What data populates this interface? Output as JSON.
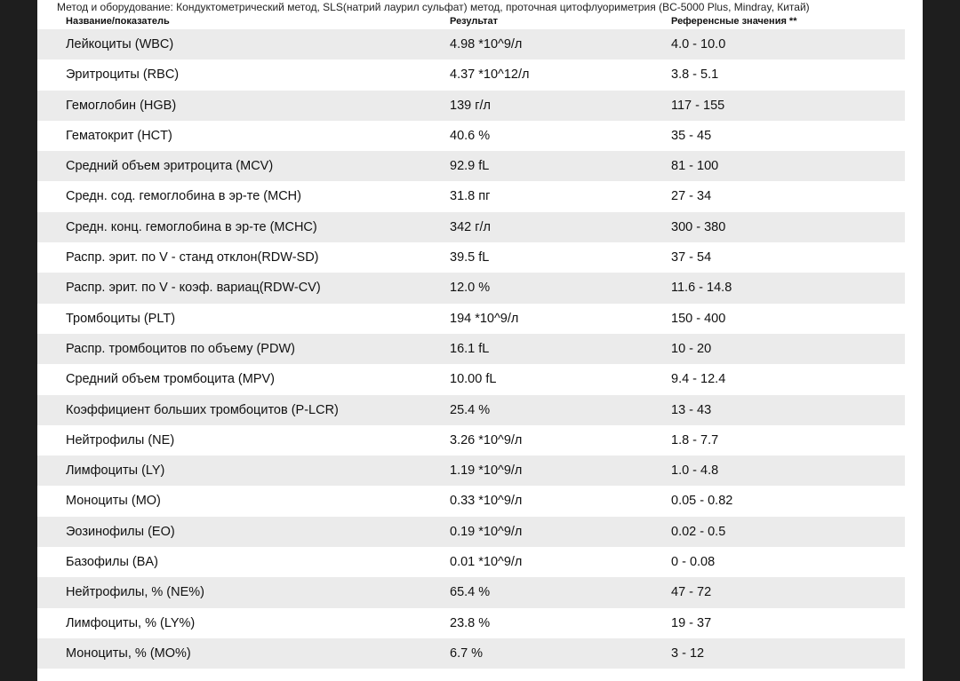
{
  "method_line": "Метод и оборудование: Кондуктометрический метод, SLS(натрий лаурил сульфат) метод, проточная цитофлуориметрия (BC-5000 Plus, Mindray, Китай)",
  "headers": {
    "name": "Название/показатель",
    "result": "Результат",
    "reference": "Референсные значения **"
  },
  "rows": [
    {
      "name": "Лейкоциты (WBC)",
      "result": "4.98 *10^9/л",
      "ref": "4.0 - 10.0"
    },
    {
      "name": "Эритроциты (RBC)",
      "result": "4.37 *10^12/л",
      "ref": "3.8 - 5.1"
    },
    {
      "name": "Гемоглобин (HGB)",
      "result": "139 г/л",
      "ref": "117 - 155"
    },
    {
      "name": "Гематокрит (HCT)",
      "result": "40.6 %",
      "ref": "35 - 45"
    },
    {
      "name": "Средний объем эритроцита (MCV)",
      "result": "92.9 fL",
      "ref": "81 - 100"
    },
    {
      "name": "Средн. сод. гемоглобина в эр-те (MCH)",
      "result": "31.8 пг",
      "ref": "27 - 34"
    },
    {
      "name": "Средн. конц. гемоглобина в эр-те (MCHC)",
      "result": "342 г/л",
      "ref": "300 - 380"
    },
    {
      "name": "Распр. эрит. по V - станд отклон(RDW-SD)",
      "result": "39.5 fL",
      "ref": "37 - 54"
    },
    {
      "name": "Распр. эрит. по V - коэф. вариац(RDW-CV)",
      "result": "12.0 %",
      "ref": "11.6 - 14.8"
    },
    {
      "name": "Тромбоциты (PLT)",
      "result": "194 *10^9/л",
      "ref": "150 - 400"
    },
    {
      "name": "Распр. тромбоцитов по объему (PDW)",
      "result": "16.1 fL",
      "ref": "10 - 20"
    },
    {
      "name": "Средний объем тромбоцита (MPV)",
      "result": "10.00 fL",
      "ref": "9.4 - 12.4"
    },
    {
      "name": "Коэффициент больших тромбоцитов (P-LCR)",
      "result": "25.4 %",
      "ref": "13 - 43"
    },
    {
      "name": "Нейтрофилы (NE)",
      "result": "3.26 *10^9/л",
      "ref": "1.8 - 7.7"
    },
    {
      "name": "Лимфоциты (LY)",
      "result": "1.19 *10^9/л",
      "ref": "1.0 - 4.8"
    },
    {
      "name": "Моноциты (MO)",
      "result": "0.33 *10^9/л",
      "ref": "0.05 - 0.82"
    },
    {
      "name": "Эозинофилы (EO)",
      "result": "0.19 *10^9/л",
      "ref": "0.02 - 0.5"
    },
    {
      "name": "Базофилы (BA)",
      "result": "0.01 *10^9/л",
      "ref": "0 - 0.08"
    },
    {
      "name": "Нейтрофилы, % (NE%)",
      "result": "65.4 %",
      "ref": "47 - 72"
    },
    {
      "name": "Лимфоциты, % (LY%)",
      "result": "23.8 %",
      "ref": "19 - 37"
    },
    {
      "name": "Моноциты, % (MO%)",
      "result": "6.7 %",
      "ref": "3 - 12"
    }
  ]
}
